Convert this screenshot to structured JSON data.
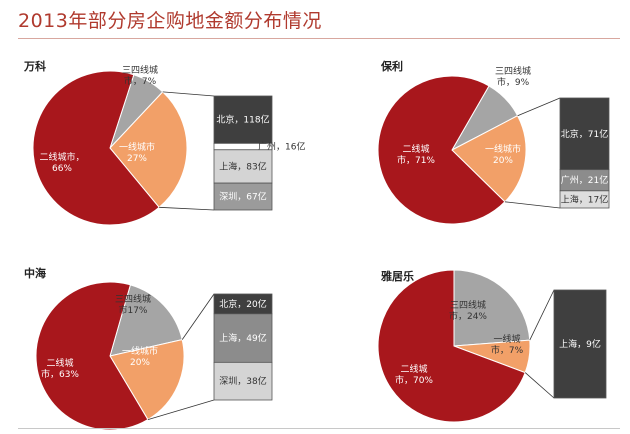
{
  "page_title": "2013年部分房企购地金额分布情况",
  "chart_data": [
    {
      "type": "pie",
      "title": "万科",
      "slices": [
        {
          "name": "二线城市",
          "label_lines": [
            "二线城市，",
            "66%"
          ],
          "value": 66,
          "color": "#a8171c",
          "label_color": "#ffffff"
        },
        {
          "name": "一线城市",
          "label_lines": [
            "一线城市",
            "27%"
          ],
          "value": 27,
          "color": "#f2a068",
          "label_color": "#ffffff"
        },
        {
          "name": "三四线城市",
          "label_lines": [
            "三四线城",
            "市，7%"
          ],
          "value": 7,
          "color": "#a5a5a5",
          "label_color": "#333333"
        }
      ],
      "breakdown": [
        {
          "name": "北京",
          "label": "北京，118亿",
          "value": 118,
          "color": "#3f3f3f",
          "label_color": "#ffffff"
        },
        {
          "name": "广州",
          "label": "广州，16亿",
          "value": 16,
          "color": "#ffffff",
          "label_color": "#333333"
        },
        {
          "name": "上海",
          "label": "上海，83亿",
          "value": 83,
          "color": "#d4d4d4",
          "label_color": "#333333"
        },
        {
          "name": "深圳",
          "label": "深圳，67亿",
          "value": 67,
          "color": "#9b9b9b",
          "label_color": "#ffffff"
        }
      ]
    },
    {
      "type": "pie",
      "title": "保利",
      "slices": [
        {
          "name": "二线城市",
          "label_lines": [
            "二线城",
            "市，71%"
          ],
          "value": 71,
          "color": "#a8171c",
          "label_color": "#ffffff"
        },
        {
          "name": "一线城市",
          "label_lines": [
            "一线城市",
            "20%"
          ],
          "value": 20,
          "color": "#f2a068",
          "label_color": "#ffffff"
        },
        {
          "name": "三四线城市",
          "label_lines": [
            "三四线城",
            "市，9%"
          ],
          "value": 9,
          "color": "#a5a5a5",
          "label_color": "#333333"
        }
      ],
      "breakdown": [
        {
          "name": "北京",
          "label": "北京，71亿",
          "value": 71,
          "color": "#3f3f3f",
          "label_color": "#ffffff"
        },
        {
          "name": "广州",
          "label": "广州，21亿",
          "value": 21,
          "color": "#8c8c8c",
          "label_color": "#ffffff"
        },
        {
          "name": "上海",
          "label": "上海，17亿",
          "value": 17,
          "color": "#dedede",
          "label_color": "#333333"
        }
      ]
    },
    {
      "type": "pie",
      "title": "中海",
      "slices": [
        {
          "name": "二线城市",
          "label_lines": [
            "二线城",
            "市，63%"
          ],
          "value": 63,
          "color": "#a8171c",
          "label_color": "#ffffff"
        },
        {
          "name": "一线城市",
          "label_lines": [
            "一线城市",
            "20%"
          ],
          "value": 20,
          "color": "#f2a068",
          "label_color": "#ffffff"
        },
        {
          "name": "三四线城市",
          "label_lines": [
            "三四线城",
            "市17%"
          ],
          "value": 17,
          "color": "#a5a5a5",
          "label_color": "#333333"
        }
      ],
      "breakdown": [
        {
          "name": "北京",
          "label": "北京，20亿",
          "value": 20,
          "color": "#3f3f3f",
          "label_color": "#ffffff"
        },
        {
          "name": "上海",
          "label": "上海，49亿",
          "value": 49,
          "color": "#8c8c8c",
          "label_color": "#ffffff"
        },
        {
          "name": "深圳",
          "label": "深圳，38亿",
          "value": 38,
          "color": "#d4d4d4",
          "label_color": "#333333"
        }
      ]
    },
    {
      "type": "pie",
      "title": "雅居乐",
      "slices": [
        {
          "name": "二线城市",
          "label_lines": [
            "二线城",
            "市，70%"
          ],
          "value": 70,
          "color": "#a8171c",
          "label_color": "#ffffff"
        },
        {
          "name": "一线城市",
          "label_lines": [
            "一线城",
            "市，7%"
          ],
          "value": 7,
          "color": "#f2a068",
          "label_color": "#333333"
        },
        {
          "name": "三四线城市",
          "label_lines": [
            "三四线城",
            "市，24%"
          ],
          "value": 24,
          "color": "#a5a5a5",
          "label_color": "#333333"
        }
      ],
      "breakdown": [
        {
          "name": "上海",
          "label": "上海，9亿",
          "value": 9,
          "color": "#3f3f3f",
          "label_color": "#ffffff"
        }
      ]
    }
  ]
}
